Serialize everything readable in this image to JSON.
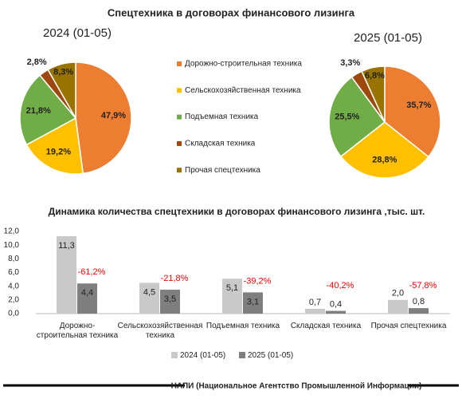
{
  "title": "Спецтехника в договорах финансового лизинга",
  "footer": "НАПИ (Национальное Агентство Промышленной Информации)",
  "chart_data": [
    {
      "type": "pie",
      "title": "2024 (01-05)",
      "categories": [
        "Дорожно-строительная техника",
        "Сельскохозяйственная техника",
        "Подъемная техника",
        "Складская техника",
        "Прочая спецтехника"
      ],
      "colors": [
        "#ED7D31",
        "#FFC000",
        "#70AD47",
        "#9E480E",
        "#997300"
      ],
      "values": [
        47.9,
        19.2,
        21.8,
        2.8,
        8.3
      ],
      "value_labels": [
        "47,9%",
        "19,2%",
        "21,8%",
        "2,8%",
        "8,3%"
      ]
    },
    {
      "type": "pie",
      "title": "2025 (01-05)",
      "colors": [
        "#ED7D31",
        "#FFC000",
        "#70AD47",
        "#9E480E",
        "#997300"
      ],
      "values": [
        35.7,
        28.8,
        25.5,
        3.3,
        6.8
      ],
      "value_labels": [
        "35,7%",
        "28,8%",
        "25,5%",
        "3,3%",
        "6,8%"
      ]
    },
    {
      "type": "bar",
      "title": "Динамика количества спецтехники в договорах финансового лизинга ,тыс. шт.",
      "categories": [
        "Дорожно-строительная техника",
        "Сельскохозяйственная техника",
        "Подъемная техника",
        "Складская техника",
        "Прочая спецтехника"
      ],
      "series": [
        {
          "name": "2024 (01-05)",
          "color": "#C9C9C9",
          "values": [
            11.3,
            4.5,
            5.1,
            0.7,
            2.0
          ],
          "value_labels": [
            "11,3",
            "4,5",
            "5,1",
            "0,7",
            "2,0"
          ]
        },
        {
          "name": "2025 (01-05)",
          "color": "#7F7F7F",
          "values": [
            4.4,
            3.5,
            3.1,
            0.4,
            0.8
          ],
          "value_labels": [
            "4,4",
            "3,5",
            "3,1",
            "0,4",
            "0,8"
          ]
        }
      ],
      "annotations": [
        "-61,2%",
        "-21,8%",
        "-39,2%",
        "-40,2%",
        "-57,8%"
      ],
      "annotation_color": "#FF0000",
      "ylim": [
        0,
        12
      ],
      "yticks": [
        {
          "value": 0,
          "label": "0,0"
        },
        {
          "value": 2,
          "label": "2,0"
        },
        {
          "value": 4,
          "label": "4,0"
        },
        {
          "value": 6,
          "label": "6,0"
        },
        {
          "value": 8,
          "label": "8,0"
        },
        {
          "value": 10,
          "label": "10,0"
        },
        {
          "value": 12,
          "label": "12,0"
        }
      ]
    }
  ]
}
